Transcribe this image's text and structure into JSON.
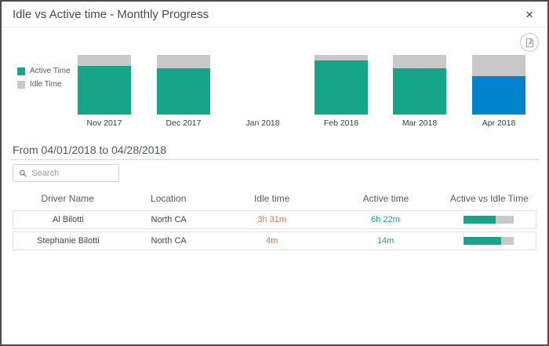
{
  "header": {
    "title": "Idle vs Active time - Monthly Progress",
    "close_glyph": "×"
  },
  "toolbar": {
    "export_icon": "export-report-icon"
  },
  "colors": {
    "active_teal": "#17a589",
    "idle_gray": "#c9c9c9",
    "selected_blue": "#0083cb",
    "idle_text_orange": "#e0764f",
    "active_text_teal": "#27a08a"
  },
  "legend": {
    "active_label": "Active Time",
    "idle_label": "Idle Time"
  },
  "chart_data": {
    "type": "bar",
    "stacked": true,
    "legend_position": "left",
    "categories": [
      "Nov 2017",
      "Dec 2017",
      "Jan 2018",
      "Feb 2018",
      "Mar 2018",
      "Apr 2018"
    ],
    "series": [
      {
        "name": "Active Time",
        "values": [
          81,
          78,
          0,
          91,
          77,
          64
        ]
      },
      {
        "name": "Idle Time",
        "values": [
          19,
          22,
          0,
          9,
          23,
          36
        ]
      }
    ],
    "months": [
      {
        "label": "Nov 2017",
        "active_pct": 81,
        "idle_pct": 19,
        "selected": false
      },
      {
        "label": "Dec 2017",
        "active_pct": 78,
        "idle_pct": 22,
        "selected": false
      },
      {
        "label": "Jan 2018",
        "active_pct": 0,
        "idle_pct": 0,
        "selected": false
      },
      {
        "label": "Feb 2018",
        "active_pct": 91,
        "idle_pct": 9,
        "selected": false
      },
      {
        "label": "Mar 2018",
        "active_pct": 77,
        "idle_pct": 23,
        "selected": false
      },
      {
        "label": "Apr 2018",
        "active_pct": 64,
        "idle_pct": 36,
        "selected": true
      }
    ]
  },
  "date_range": {
    "text": "From 04/01/2018 to 04/28/2018"
  },
  "search": {
    "placeholder": "Search",
    "value": ""
  },
  "table": {
    "columns": [
      "Driver Name",
      "Location",
      "Idle time",
      "Active time",
      "Active vs Idle Time"
    ],
    "rows": [
      {
        "name": "Al Bilotti",
        "location": "North CA",
        "idle": "3h 31m",
        "active": "6h 22m",
        "active_pct": 64
      },
      {
        "name": "Stephanie Bilotti",
        "location": "North CA",
        "idle": "4m",
        "active": "14m",
        "active_pct": 75
      }
    ]
  }
}
